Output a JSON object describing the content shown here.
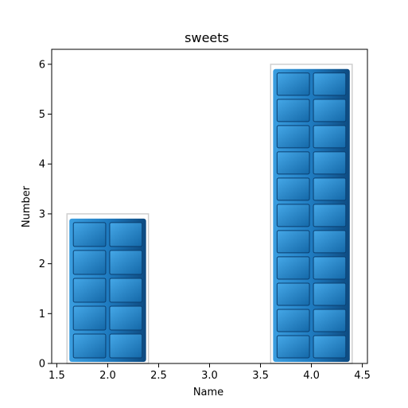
{
  "chart_data": {
    "type": "bar",
    "title": "sweets",
    "xlabel": "Name",
    "ylabel": "Number",
    "xlim": [
      1.45,
      4.55
    ],
    "ylim": [
      0,
      6.3
    ],
    "xticks": [
      1.5,
      2.0,
      2.5,
      3.0,
      3.5,
      4.0,
      4.5
    ],
    "xtick_labels": [
      "1.5",
      "2.0",
      "2.5",
      "3.0",
      "3.5",
      "4.0",
      "4.5"
    ],
    "yticks": [
      0,
      1,
      2,
      3,
      4,
      5,
      6
    ],
    "ytick_labels": [
      "0",
      "1",
      "2",
      "3",
      "4",
      "5",
      "6"
    ],
    "bars": [
      {
        "x": 2,
        "value": 3,
        "width": 0.8
      },
      {
        "x": 4,
        "value": 6,
        "width": 0.8
      }
    ],
    "bar_style": "chocolate-bar",
    "grid": false,
    "colors": {
      "bar_fill": "#1f7bc0",
      "bar_light": "#3a9ee0",
      "bar_dark": "#0d4a80",
      "bar_outline": "#cfcfcf"
    }
  }
}
